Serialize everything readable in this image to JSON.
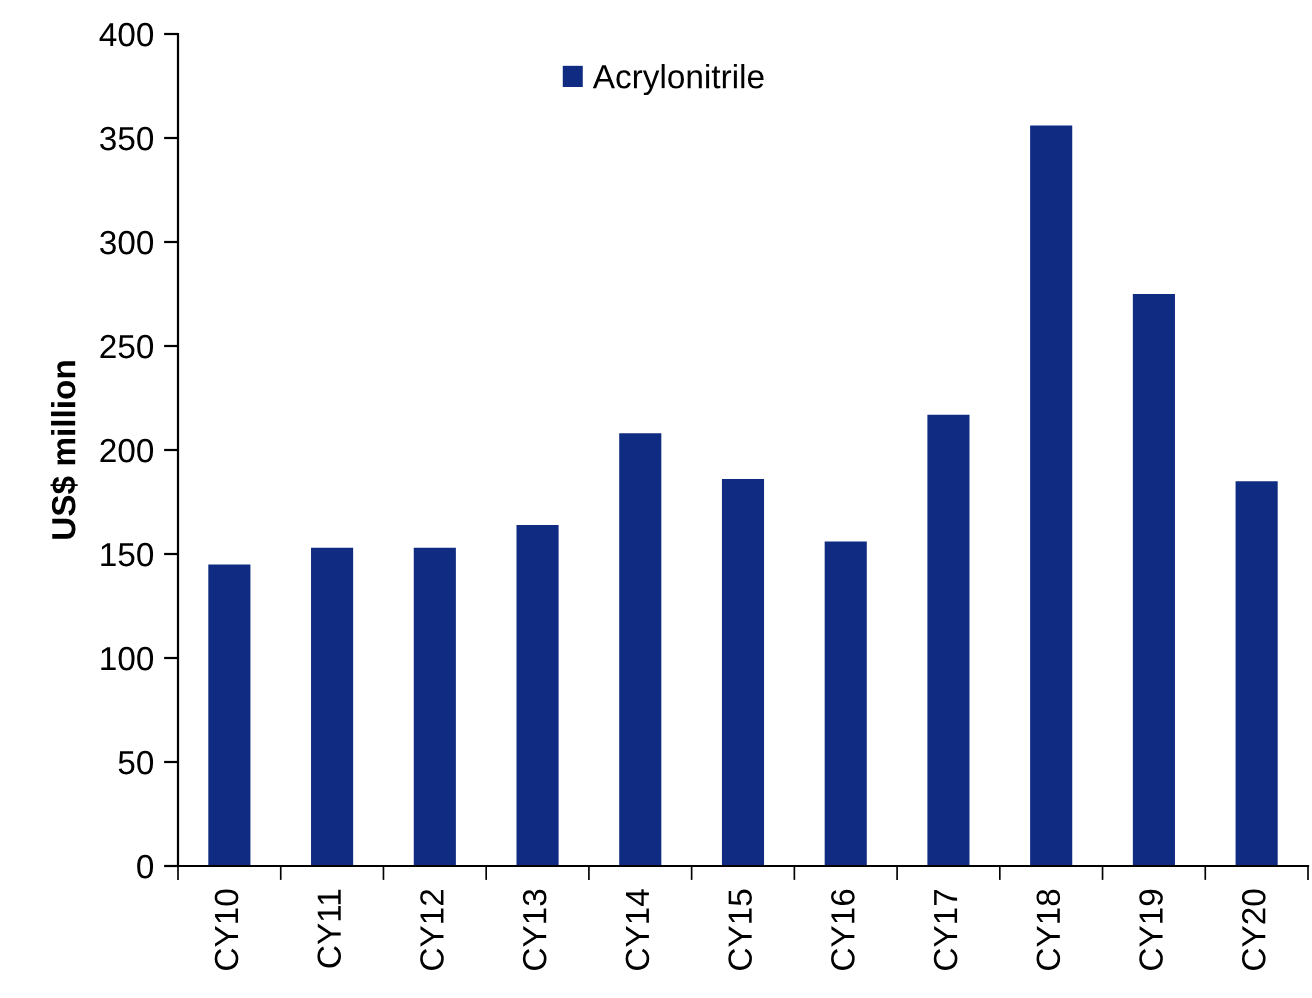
{
  "chart_data": {
    "type": "bar",
    "ylabel": "US$ million",
    "categories": [
      "CY10",
      "CY11",
      "CY12",
      "CY13",
      "CY14",
      "CY15",
      "CY16",
      "CY17",
      "CY18",
      "CY19",
      "CY20"
    ],
    "series": [
      {
        "name": "Acrylonitrile",
        "color": "#102b82",
        "values": [
          145,
          153,
          153,
          164,
          208,
          186,
          156,
          217,
          356,
          275,
          185
        ]
      }
    ],
    "ylim": [
      0,
      400
    ],
    "yticks": [
      0,
      50,
      100,
      150,
      200,
      250,
      300,
      350,
      400
    ],
    "legend": "top",
    "grid": false
  }
}
